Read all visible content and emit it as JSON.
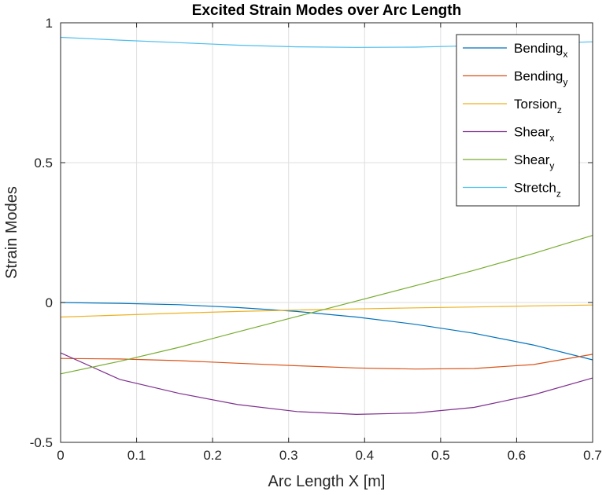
{
  "chart_data": {
    "type": "line",
    "title": "Excited Strain Modes over Arc Length",
    "xlabel": "Arc Length X [m]",
    "ylabel": "Strain Modes",
    "xlim": [
      0,
      0.7
    ],
    "ylim": [
      -0.5,
      1
    ],
    "xticks": [
      "0",
      "0.1",
      "0.2",
      "0.3",
      "0.4",
      "0.5",
      "0.6",
      "0.7"
    ],
    "yticks": [
      "-0.5",
      "0",
      "0.5",
      "1"
    ],
    "grid": true,
    "legend_position": "top-right",
    "x": [
      0,
      0.078,
      0.156,
      0.233,
      0.311,
      0.389,
      0.467,
      0.544,
      0.622,
      0.7
    ],
    "series": [
      {
        "name": "Bending",
        "sub": "x",
        "color": "#0072BD",
        "values": [
          0.0,
          -0.003,
          -0.008,
          -0.018,
          -0.032,
          -0.052,
          -0.078,
          -0.11,
          -0.152,
          -0.205
        ]
      },
      {
        "name": "Bending",
        "sub": "y",
        "color": "#D95319",
        "values": [
          -0.2,
          -0.202,
          -0.208,
          -0.217,
          -0.226,
          -0.234,
          -0.238,
          -0.236,
          -0.222,
          -0.185
        ]
      },
      {
        "name": "Torsion",
        "sub": "z",
        "color": "#EDB120",
        "values": [
          -0.052,
          -0.045,
          -0.038,
          -0.032,
          -0.027,
          -0.023,
          -0.019,
          -0.016,
          -0.012,
          -0.009
        ]
      },
      {
        "name": "Shear",
        "sub": "x",
        "color": "#7E2F8E",
        "values": [
          -0.18,
          -0.275,
          -0.325,
          -0.365,
          -0.39,
          -0.4,
          -0.395,
          -0.375,
          -0.33,
          -0.27
        ]
      },
      {
        "name": "Shear",
        "sub": "y",
        "color": "#77AC30",
        "values": [
          -0.255,
          -0.21,
          -0.16,
          -0.105,
          -0.05,
          0.005,
          0.06,
          0.115,
          0.175,
          0.24
        ]
      },
      {
        "name": "Stretch",
        "sub": "z",
        "color": "#4DBEEE",
        "values": [
          0.948,
          0.938,
          0.929,
          0.92,
          0.914,
          0.912,
          0.913,
          0.918,
          0.925,
          0.932
        ]
      }
    ]
  }
}
